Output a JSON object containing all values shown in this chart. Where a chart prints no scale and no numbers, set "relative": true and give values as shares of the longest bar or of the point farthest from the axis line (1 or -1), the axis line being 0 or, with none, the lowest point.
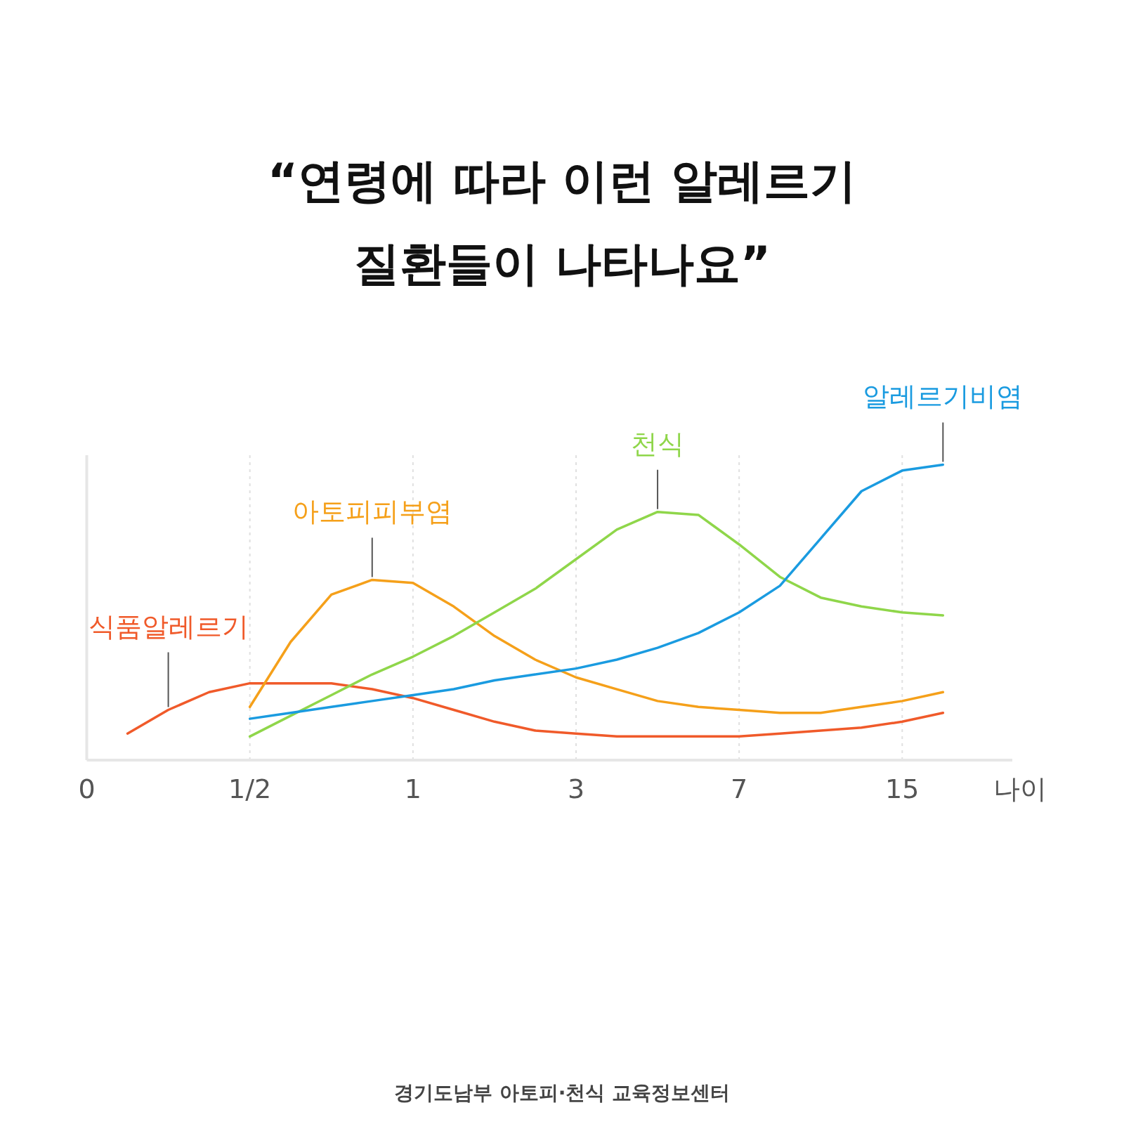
{
  "chart_data": {
    "type": "line",
    "title": "“연령에 따라 이런 알레르기\n질환들이 나타나요”",
    "xlabel": "나이",
    "relative": true,
    "grid": "x",
    "legend": false,
    "marker": "none",
    "line_style": "solid",
    "categories": [
      "0",
      null,
      null,
      null,
      "1/2",
      null,
      null,
      null,
      "1",
      null,
      null,
      null,
      "3",
      null,
      null,
      null,
      "7",
      null,
      null,
      null,
      "15",
      null,
      null
    ],
    "series": [
      {
        "name": "식품알레르기",
        "color": "#f05a2a",
        "values": [
          null,
          0.09,
          0.17,
          0.23,
          0.26,
          0.26,
          0.26,
          0.24,
          0.21,
          0.17,
          0.13,
          0.1,
          0.09,
          0.08,
          0.08,
          0.08,
          0.08,
          0.09,
          0.1,
          0.11,
          0.13,
          0.16,
          null
        ]
      },
      {
        "name": "아토피피부염",
        "color": "#f5a01a",
        "values": [
          null,
          null,
          null,
          null,
          0.18,
          0.4,
          0.56,
          0.61,
          0.6,
          0.52,
          0.42,
          0.34,
          0.28,
          0.24,
          0.2,
          0.18,
          0.17,
          0.16,
          0.16,
          0.18,
          0.2,
          0.23,
          null
        ]
      },
      {
        "name": "천식",
        "color": "#8fd64a",
        "values": [
          null,
          null,
          null,
          null,
          0.08,
          0.15,
          0.22,
          0.29,
          0.35,
          0.42,
          0.5,
          0.58,
          0.68,
          0.78,
          0.84,
          0.83,
          0.73,
          0.62,
          0.55,
          0.52,
          0.5,
          0.49,
          null
        ]
      },
      {
        "name": "알레르기비염",
        "color": "#1a9be0",
        "values": [
          null,
          null,
          null,
          null,
          0.14,
          0.16,
          0.18,
          0.2,
          0.22,
          0.24,
          0.27,
          0.29,
          0.31,
          0.34,
          0.38,
          0.43,
          0.5,
          0.59,
          0.75,
          0.91,
          0.98,
          1.0,
          null
        ]
      }
    ],
    "annotations": [
      "경기도남부 아토피·천식 교육정보센터"
    ]
  }
}
